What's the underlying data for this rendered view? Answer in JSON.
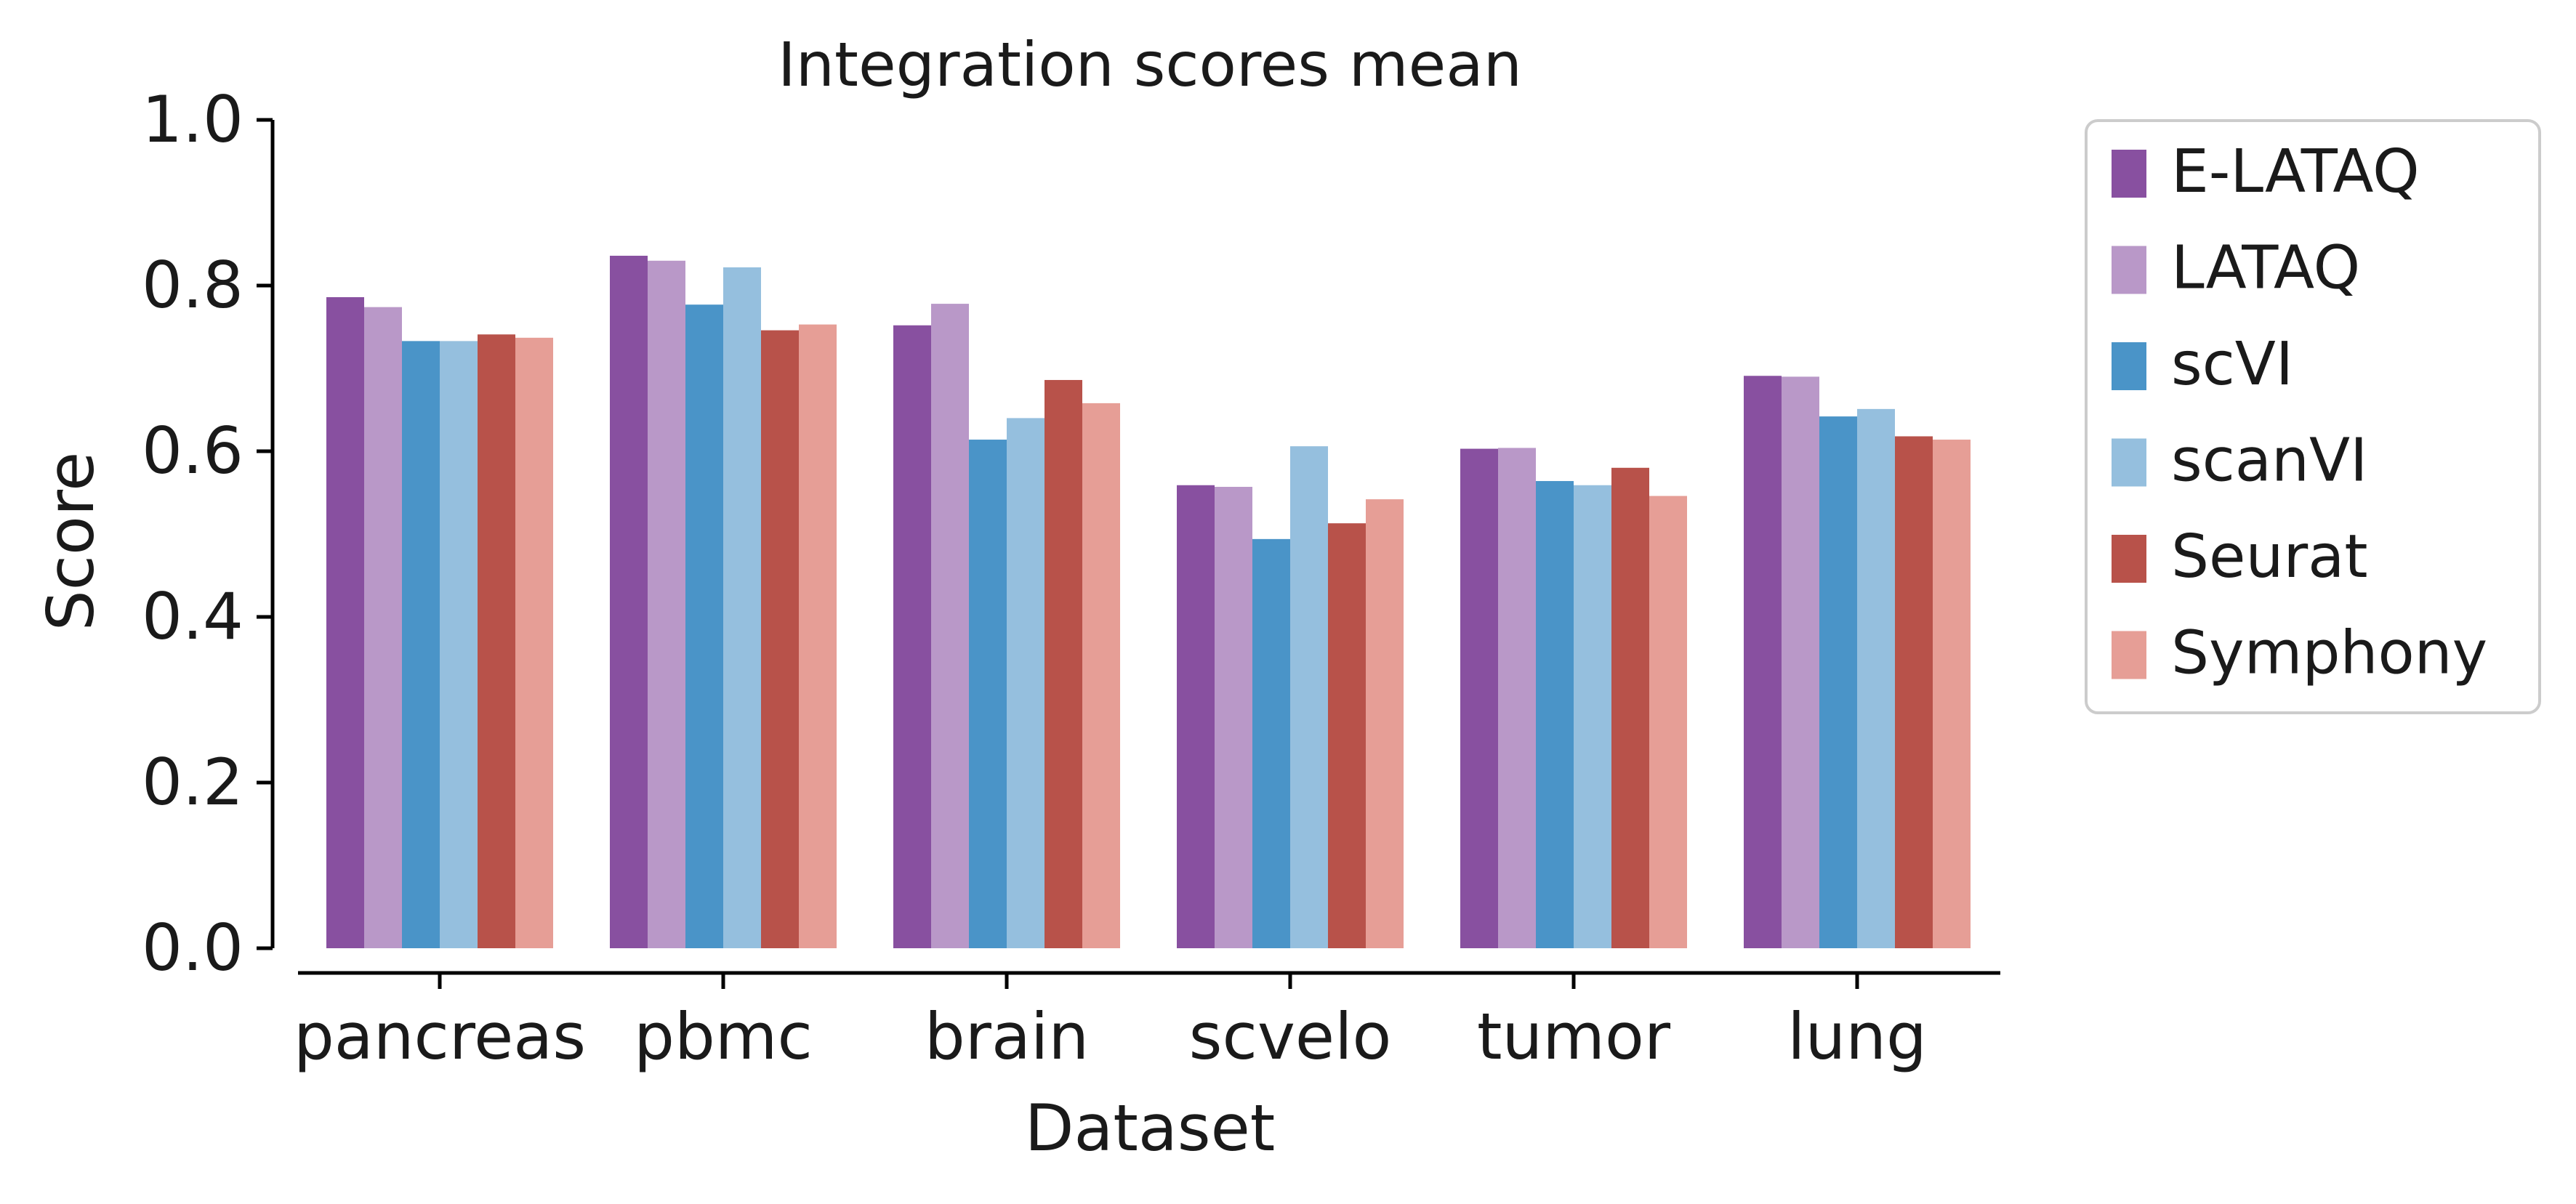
{
  "chart_data": {
    "type": "bar",
    "title": "Integration scores mean",
    "xlabel": "Dataset",
    "ylabel": "Score",
    "ylim": [
      0.0,
      1.0
    ],
    "yticks": [
      "0.0",
      "0.2",
      "0.4",
      "0.6",
      "0.8",
      "1.0"
    ],
    "categories": [
      "pancreas",
      "pbmc",
      "brain",
      "scvelo",
      "tumor",
      "lung"
    ],
    "legend_position": "outside-right-top",
    "grid": false,
    "series": [
      {
        "name": "E-LATAQ",
        "color": "#8850a0",
        "values": [
          0.786,
          0.836,
          0.752,
          0.559,
          0.603,
          0.691
        ]
      },
      {
        "name": "LATAQ",
        "color": "#b998c8",
        "values": [
          0.774,
          0.83,
          0.778,
          0.557,
          0.604,
          0.69
        ]
      },
      {
        "name": "scVI",
        "color": "#4a94c8",
        "values": [
          0.733,
          0.777,
          0.614,
          0.494,
          0.564,
          0.642
        ]
      },
      {
        "name": "scanVI",
        "color": "#95bfde",
        "values": [
          0.733,
          0.822,
          0.64,
          0.606,
          0.559,
          0.651
        ]
      },
      {
        "name": "Seurat",
        "color": "#b8524a",
        "values": [
          0.741,
          0.746,
          0.686,
          0.513,
          0.58,
          0.618
        ]
      },
      {
        "name": "Symphony",
        "color": "#e69e96",
        "values": [
          0.737,
          0.753,
          0.658,
          0.542,
          0.546,
          0.614
        ]
      }
    ]
  }
}
